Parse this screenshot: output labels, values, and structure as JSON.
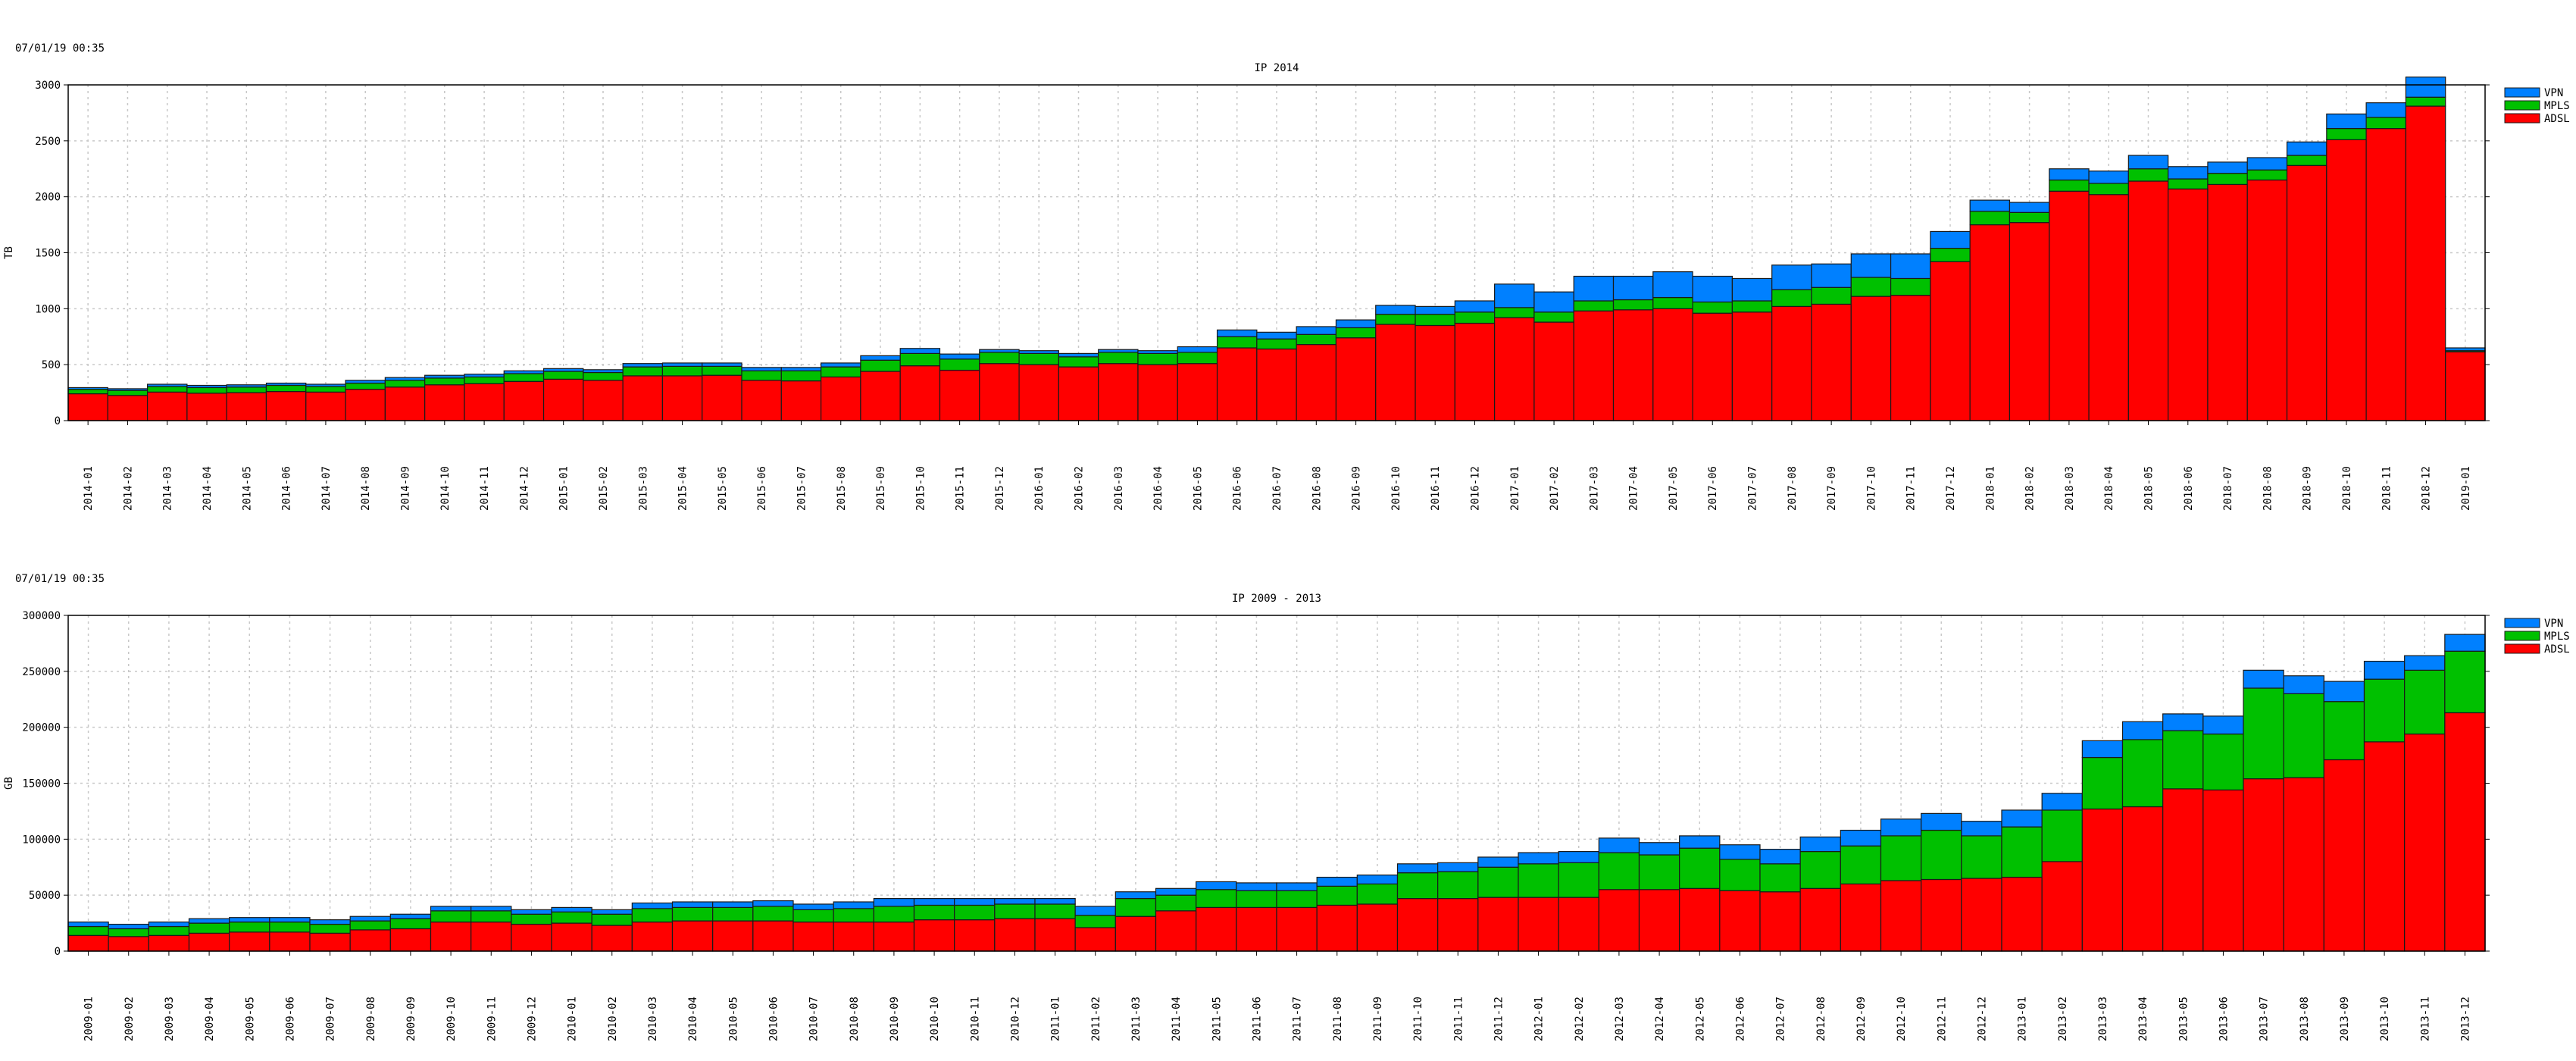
{
  "chart_data": [
    {
      "type": "bar",
      "stacked": true,
      "timestamp": "07/01/19 00:35",
      "title": "IP 2014",
      "ylabel": "TB",
      "xlabel": "",
      "ylim": [
        0,
        3000
      ],
      "yticks": [
        0,
        500,
        1000,
        1500,
        2000,
        2500,
        3000
      ],
      "grid": true,
      "legend": "right",
      "categories": [
        "2014-01",
        "2014-02",
        "2014-03",
        "2014-04",
        "2014-05",
        "2014-06",
        "2014-07",
        "2014-08",
        "2014-09",
        "2014-10",
        "2014-11",
        "2014-12",
        "2015-01",
        "2015-02",
        "2015-03",
        "2015-04",
        "2015-05",
        "2015-06",
        "2015-07",
        "2015-08",
        "2015-09",
        "2015-10",
        "2015-11",
        "2015-12",
        "2016-01",
        "2016-02",
        "2016-03",
        "2016-04",
        "2016-05",
        "2016-06",
        "2016-07",
        "2016-08",
        "2016-09",
        "2016-10",
        "2016-11",
        "2016-12",
        "2017-01",
        "2017-02",
        "2017-03",
        "2017-04",
        "2017-05",
        "2017-06",
        "2017-07",
        "2017-08",
        "2017-09",
        "2017-10",
        "2017-11",
        "2017-12",
        "2018-01",
        "2018-02",
        "2018-03",
        "2018-04",
        "2018-05",
        "2018-06",
        "2018-07",
        "2018-08",
        "2018-09",
        "2018-10",
        "2018-11",
        "2018-12",
        "2019-01"
      ],
      "series": [
        {
          "name": "ADSL",
          "color": "#ff0000",
          "values": [
            240,
            225,
            255,
            245,
            250,
            260,
            255,
            280,
            300,
            320,
            330,
            350,
            370,
            360,
            400,
            400,
            405,
            360,
            355,
            390,
            440,
            490,
            450,
            510,
            500,
            480,
            510,
            500,
            510,
            650,
            640,
            680,
            740,
            860,
            850,
            870,
            920,
            880,
            980,
            990,
            1000,
            960,
            970,
            1020,
            1040,
            1110,
            1120,
            1420,
            1750,
            1770,
            2050,
            2020,
            2140,
            2070,
            2110,
            2150,
            2280,
            2510,
            2610,
            2810,
            615
          ]
        },
        {
          "name": "MPLS",
          "color": "#00c000",
          "values": [
            40,
            45,
            50,
            50,
            50,
            55,
            50,
            55,
            60,
            60,
            60,
            70,
            70,
            70,
            80,
            85,
            80,
            85,
            90,
            90,
            100,
            110,
            100,
            100,
            100,
            90,
            100,
            100,
            100,
            100,
            90,
            90,
            90,
            90,
            100,
            100,
            90,
            90,
            90,
            90,
            100,
            100,
            100,
            150,
            150,
            170,
            150,
            120,
            120,
            90,
            100,
            100,
            110,
            90,
            100,
            90,
            90,
            100,
            100,
            80,
            10
          ]
        },
        {
          "name": "VPN",
          "color": "#0080ff",
          "values": [
            15,
            15,
            20,
            20,
            20,
            20,
            20,
            25,
            25,
            25,
            25,
            25,
            25,
            25,
            30,
            30,
            30,
            30,
            30,
            35,
            40,
            45,
            45,
            25,
            25,
            30,
            25,
            25,
            50,
            60,
            60,
            70,
            70,
            80,
            70,
            100,
            210,
            180,
            220,
            210,
            230,
            230,
            200,
            220,
            210,
            210,
            220,
            150,
            100,
            90,
            100,
            110,
            120,
            110,
            100,
            110,
            120,
            130,
            130,
            180,
            25
          ]
        }
      ]
    },
    {
      "type": "bar",
      "stacked": true,
      "timestamp": "07/01/19 00:35",
      "title": "IP 2009 - 2013",
      "ylabel": "GB",
      "xlabel": "",
      "ylim": [
        0,
        300000
      ],
      "yticks": [
        0,
        50000,
        100000,
        150000,
        200000,
        250000,
        300000
      ],
      "grid": true,
      "legend": "right",
      "categories": [
        "2009-01",
        "2009-02",
        "2009-03",
        "2009-04",
        "2009-05",
        "2009-06",
        "2009-07",
        "2009-08",
        "2009-09",
        "2009-10",
        "2009-11",
        "2009-12",
        "2010-01",
        "2010-02",
        "2010-03",
        "2010-04",
        "2010-05",
        "2010-06",
        "2010-07",
        "2010-08",
        "2010-09",
        "2010-10",
        "2010-11",
        "2010-12",
        "2011-01",
        "2011-02",
        "2011-03",
        "2011-04",
        "2011-05",
        "2011-06",
        "2011-07",
        "2011-08",
        "2011-09",
        "2011-10",
        "2011-11",
        "2011-12",
        "2012-01",
        "2012-02",
        "2012-03",
        "2012-04",
        "2012-05",
        "2012-06",
        "2012-07",
        "2012-08",
        "2012-09",
        "2012-10",
        "2012-11",
        "2012-12",
        "2013-01",
        "2013-02",
        "2013-03",
        "2013-04",
        "2013-05",
        "2013-06",
        "2013-07",
        "2013-08",
        "2013-09",
        "2013-10",
        "2013-11",
        "2013-12"
      ],
      "series": [
        {
          "name": "ADSL",
          "color": "#ff0000",
          "values": [
            14000,
            13000,
            14000,
            16000,
            17000,
            17000,
            16000,
            19000,
            20000,
            26000,
            26000,
            24000,
            25000,
            23000,
            26000,
            27000,
            27000,
            27000,
            26000,
            26000,
            26000,
            28000,
            28000,
            29000,
            29000,
            21000,
            31000,
            36000,
            39000,
            39000,
            39000,
            41000,
            42000,
            47000,
            47000,
            48000,
            48000,
            48000,
            55000,
            55000,
            56000,
            54000,
            53000,
            56000,
            60000,
            63000,
            64000,
            65000,
            66000,
            80000,
            127000,
            129000,
            145000,
            144000,
            154000,
            155000,
            171000,
            187000,
            194000,
            213000
          ]
        },
        {
          "name": "MPLS",
          "color": "#00c000",
          "values": [
            8000,
            7000,
            8000,
            9000,
            9000,
            9000,
            8000,
            8000,
            9000,
            10000,
            10000,
            9000,
            10000,
            10000,
            12000,
            12000,
            12000,
            13000,
            11000,
            12000,
            14000,
            13000,
            13000,
            13000,
            13000,
            11000,
            16000,
            14000,
            16000,
            15000,
            15000,
            17000,
            18000,
            23000,
            24000,
            27000,
            30000,
            31000,
            33000,
            31000,
            36000,
            28000,
            25000,
            33000,
            34000,
            40000,
            44000,
            38000,
            45000,
            46000,
            46000,
            60000,
            52000,
            50000,
            81000,
            75000,
            52000,
            56000,
            57000,
            55000
          ]
        },
        {
          "name": "VPN",
          "color": "#0080ff",
          "values": [
            4000,
            4000,
            4000,
            4000,
            4000,
            4000,
            4000,
            4000,
            4000,
            4000,
            4000,
            4000,
            4000,
            4000,
            5000,
            5000,
            5000,
            5000,
            5000,
            6000,
            7000,
            6000,
            6000,
            5000,
            5000,
            8000,
            6000,
            6000,
            7000,
            7000,
            7000,
            8000,
            8000,
            8000,
            8000,
            9000,
            10000,
            10000,
            13000,
            11000,
            11000,
            13000,
            13000,
            13000,
            14000,
            15000,
            15000,
            13000,
            15000,
            15000,
            15000,
            16000,
            15000,
            16000,
            16000,
            16000,
            18000,
            16000,
            13000,
            15000
          ]
        }
      ]
    }
  ]
}
